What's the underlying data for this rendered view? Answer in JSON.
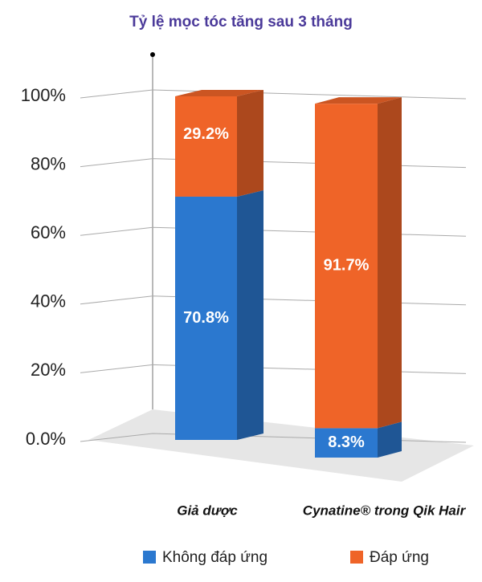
{
  "chart_data": {
    "type": "stacked-bar-3d",
    "title": "Tỷ lệ mọc tóc tăng sau 3 tháng",
    "categories": [
      "Giả dược",
      "Cynatine® trong Qik Hair"
    ],
    "series": [
      {
        "name": "Không đáp ứng",
        "color": "#2b78cf",
        "values": [
          70.8,
          8.3
        ],
        "value_labels": [
          "70.8%",
          "8.3%"
        ]
      },
      {
        "name": "Đáp ứng",
        "color": "#ef6428",
        "values": [
          29.2,
          91.7
        ],
        "value_labels": [
          "29.2%",
          "91.7%"
        ]
      }
    ],
    "ylim": [
      0,
      100
    ],
    "yticks": [
      {
        "value": 0,
        "label": "0.0%"
      },
      {
        "value": 20,
        "label": "20%"
      },
      {
        "value": 40,
        "label": "40%"
      },
      {
        "value": 60,
        "label": "60%"
      },
      {
        "value": 80,
        "label": "80%"
      },
      {
        "value": 100,
        "label": "100%"
      }
    ],
    "grid": true
  }
}
